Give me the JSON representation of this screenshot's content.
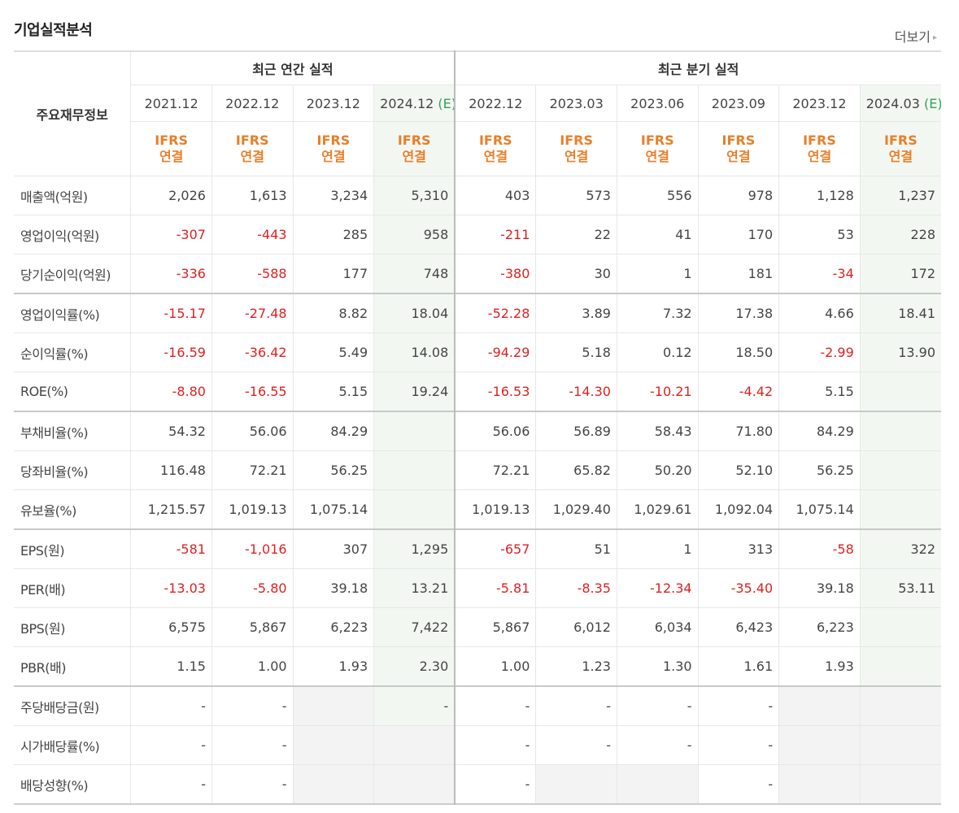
{
  "section_title": "기업실적분석",
  "more_label": "더보기",
  "more_arrow": "▸",
  "header": {
    "row_label": "주요재무정보",
    "annual_group": "최근 연간 실적",
    "quarter_group": "최근 분기 실적",
    "estimate_mark": "(E)",
    "periods": [
      {
        "label": "2021.12"
      },
      {
        "label": "2022.12"
      },
      {
        "label": "2023.12"
      },
      {
        "label": "2024.12",
        "estimate": true
      },
      {
        "label": "2022.12"
      },
      {
        "label": "2023.03"
      },
      {
        "label": "2023.06"
      },
      {
        "label": "2023.09"
      },
      {
        "label": "2023.12"
      },
      {
        "label": "2024.03",
        "estimate": true
      }
    ],
    "standard_line1": "IFRS",
    "standard_line2": "연결"
  },
  "rows": [
    {
      "label": "매출액(억원)",
      "values": [
        "2,026",
        "1,613",
        "3,234",
        "5,310",
        "403",
        "573",
        "556",
        "978",
        "1,128",
        "1,237"
      ]
    },
    {
      "label": "영업이익(억원)",
      "values": [
        "-307",
        "-443",
        "285",
        "958",
        "-211",
        "22",
        "41",
        "170",
        "53",
        "228"
      ]
    },
    {
      "label": "당기순이익(억원)",
      "values": [
        "-336",
        "-588",
        "177",
        "748",
        "-380",
        "30",
        "1",
        "181",
        "-34",
        "172"
      ]
    },
    {
      "label": "영업이익률(%)",
      "values": [
        "-15.17",
        "-27.48",
        "8.82",
        "18.04",
        "-52.28",
        "3.89",
        "7.32",
        "17.38",
        "4.66",
        "18.41"
      ]
    },
    {
      "label": "순이익률(%)",
      "values": [
        "-16.59",
        "-36.42",
        "5.49",
        "14.08",
        "-94.29",
        "5.18",
        "0.12",
        "18.50",
        "-2.99",
        "13.90"
      ]
    },
    {
      "label": "ROE(%)",
      "values": [
        "-8.80",
        "-16.55",
        "5.15",
        "19.24",
        "-16.53",
        "-14.30",
        "-10.21",
        "-4.42",
        "5.15",
        ""
      ]
    },
    {
      "label": "부채비율(%)",
      "values": [
        "54.32",
        "56.06",
        "84.29",
        "",
        "56.06",
        "56.89",
        "58.43",
        "71.80",
        "84.29",
        ""
      ]
    },
    {
      "label": "당좌비율(%)",
      "values": [
        "116.48",
        "72.21",
        "56.25",
        "",
        "72.21",
        "65.82",
        "50.20",
        "52.10",
        "56.25",
        ""
      ]
    },
    {
      "label": "유보율(%)",
      "values": [
        "1,215.57",
        "1,019.13",
        "1,075.14",
        "",
        "1,019.13",
        "1,029.40",
        "1,029.61",
        "1,092.04",
        "1,075.14",
        ""
      ]
    },
    {
      "label": "EPS(원)",
      "values": [
        "-581",
        "-1,016",
        "307",
        "1,295",
        "-657",
        "51",
        "1",
        "313",
        "-58",
        "322"
      ]
    },
    {
      "label": "PER(배)",
      "values": [
        "-13.03",
        "-5.80",
        "39.18",
        "13.21",
        "-5.81",
        "-8.35",
        "-12.34",
        "-35.40",
        "39.18",
        "53.11"
      ]
    },
    {
      "label": "BPS(원)",
      "values": [
        "6,575",
        "5,867",
        "6,223",
        "7,422",
        "5,867",
        "6,012",
        "6,034",
        "6,423",
        "6,223",
        ""
      ]
    },
    {
      "label": "PBR(배)",
      "values": [
        "1.15",
        "1.00",
        "1.93",
        "2.30",
        "1.00",
        "1.23",
        "1.30",
        "1.61",
        "1.93",
        ""
      ]
    },
    {
      "label": "주당배당금(원)",
      "values": [
        "-",
        "-",
        "",
        "-",
        "-",
        "-",
        "-",
        "-",
        "",
        ""
      ]
    },
    {
      "label": "시가배당률(%)",
      "values": [
        "-",
        "-",
        "",
        "",
        "-",
        "-",
        "-",
        "-",
        "",
        ""
      ]
    },
    {
      "label": "배당성향(%)",
      "values": [
        "-",
        "-",
        "",
        "",
        "-",
        "",
        "",
        "-",
        "",
        ""
      ]
    }
  ],
  "colors": {
    "negative": "#e02020",
    "ifrs": "#e87f2a",
    "estimate": "#3aa05a",
    "estimate_column_bg": "#f2f7f2",
    "unavailable_bg": "#f3f3f3"
  }
}
